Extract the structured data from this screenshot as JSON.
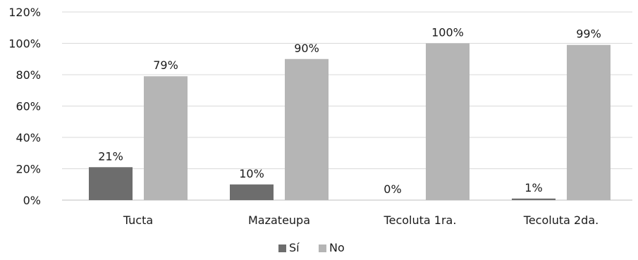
{
  "chart_data": {
    "type": "bar",
    "categories": [
      "Tucta",
      "Mazateupa",
      "Tecoluta 1ra.",
      "Tecoluta 2da."
    ],
    "series": [
      {
        "name": "Sí",
        "values": [
          21,
          10,
          0,
          1
        ],
        "labels": [
          "21%",
          "10%",
          "0%",
          "1%"
        ],
        "color": "#6d6d6d"
      },
      {
        "name": "No",
        "values": [
          79,
          90,
          100,
          99
        ],
        "labels": [
          "79%",
          "90%",
          "100%",
          "99%"
        ],
        "color": "#b5b5b5"
      }
    ],
    "ylim": [
      0,
      120
    ],
    "yticks": [
      0,
      20,
      40,
      60,
      80,
      100,
      120
    ],
    "ytick_labels": [
      "0%",
      "20%",
      "40%",
      "60%",
      "80%",
      "100%",
      "120%"
    ],
    "grid": true,
    "legend": "bottom-center"
  }
}
